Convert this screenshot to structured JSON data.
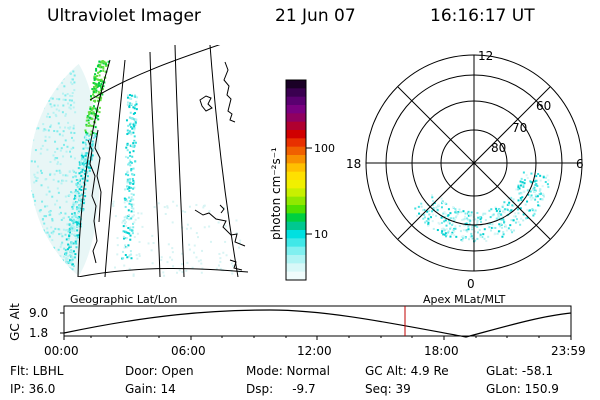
{
  "header": {
    "instrument": "Ultraviolet Imager",
    "date": "21 Jun 07",
    "time": "16:16:17 UT"
  },
  "colorbar": {
    "unit_label": "photon cm⁻²s⁻¹",
    "ticks": [
      "100",
      "10"
    ],
    "colors": [
      "#1a0026",
      "#3a0050",
      "#5a0070",
      "#7a0080",
      "#900060",
      "#b00030",
      "#d00000",
      "#e83000",
      "#f06000",
      "#f89000",
      "#ffc000",
      "#ffe000",
      "#f0f000",
      "#c8f000",
      "#90e800",
      "#50e000",
      "#00d040",
      "#00c890",
      "#00e0e0",
      "#40e8e8",
      "#80f0f0",
      "#b0f4f4",
      "#d8f8f8",
      "#f0fcfc"
    ]
  },
  "left_panel": {
    "title": "Geographic Lat/Lon"
  },
  "right_panel": {
    "title": "Apex  MLat/MLT",
    "mlt_labels": {
      "top": "12",
      "left": "18",
      "right": "6",
      "bottom": "0"
    },
    "lat_labels": [
      "60",
      "70",
      "80"
    ]
  },
  "orbit_plot": {
    "ylabel": "GC Alt",
    "yticks": [
      "9.0",
      "1.8"
    ],
    "xticks": [
      "00:00",
      "06:00",
      "12:00",
      "18:00",
      "23:59"
    ],
    "marker_color": "#c00000"
  },
  "status": {
    "col1": {
      "line1": "Flt: LBHL",
      "line2": "IP: 36.0"
    },
    "col2": {
      "line1": "Door: Open",
      "line2": "Gain: 14"
    },
    "col3": {
      "line1": "Mode: Normal",
      "line2": "Dsp:     -9.7"
    },
    "col4": {
      "line1": "GC Alt: 4.9 Re",
      "line2": "Seq: 39"
    },
    "col5": {
      "line1": "GLat: -58.1",
      "line2": "GLon: 150.9"
    }
  }
}
